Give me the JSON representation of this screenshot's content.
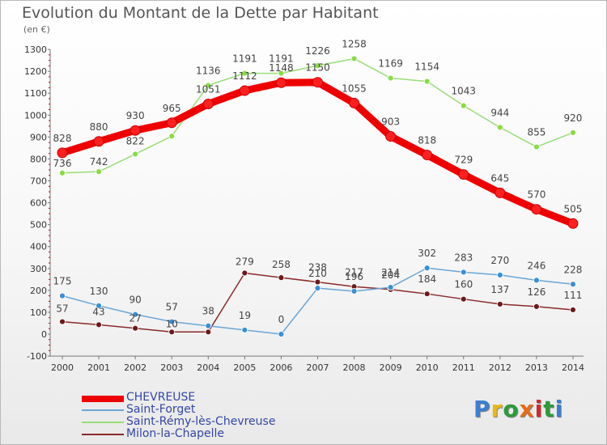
{
  "title": "Evolution du Montant de la Dette par Habitant",
  "unit": "(en €)",
  "chart_data": {
    "type": "line",
    "title": "Evolution du Montant de la Dette par Habitant",
    "subtitle": "(en €)",
    "x": [
      "2000",
      "2001",
      "2002",
      "2003",
      "2004",
      "2005",
      "2006",
      "2007",
      "2008",
      "2009",
      "2010",
      "2011",
      "2012",
      "2013",
      "2014"
    ],
    "ylim": [
      -100,
      1300
    ],
    "yticks": [
      -100,
      0,
      100,
      200,
      300,
      400,
      500,
      600,
      700,
      800,
      900,
      1000,
      1100,
      1200,
      1300
    ],
    "grid": false,
    "legend_position": "bottom-left",
    "series": [
      {
        "name": "CHEVREUSE",
        "color": "#ee0000",
        "marker": "#ff2020",
        "values": [
          828,
          880,
          930,
          965,
          1051,
          1112,
          1148,
          1150,
          1055,
          903,
          818,
          729,
          645,
          570,
          505
        ]
      },
      {
        "name": "Saint-Forget",
        "color": "#6aa6d6",
        "marker": "#3a8fd6",
        "values": [
          175,
          130,
          90,
          57,
          38,
          19,
          0,
          210,
          196,
          214,
          302,
          283,
          270,
          246,
          228
        ]
      },
      {
        "name": "Saint-Rémy-lès-Chevreuse",
        "color": "#99dd77",
        "marker": "#88dd44",
        "values": [
          736,
          742,
          822,
          904,
          1136,
          1191,
          1191,
          1226,
          1258,
          1169,
          1154,
          1043,
          944,
          855,
          920
        ]
      },
      {
        "name": "Milon-la-Chapelle",
        "color": "#8b2a2a",
        "marker": "#6b1a1a",
        "values": [
          57,
          43,
          27,
          10,
          10,
          279,
          258,
          238,
          217,
          204,
          184,
          160,
          137,
          126,
          111
        ]
      }
    ],
    "data_labels": {
      "CHEVREUSE": [
        "828",
        "880",
        "930",
        "965",
        "1051",
        "1112",
        "1148",
        "1150",
        "1055",
        "903",
        "818",
        "729",
        "645",
        "570",
        "505"
      ],
      "Saint-Forget": [
        "175",
        "130",
        "90",
        "57",
        "38",
        "19",
        "0",
        "210",
        "196",
        "214",
        "302",
        "283",
        "270",
        "246",
        "228"
      ],
      "Saint-Rémy-lès-Chevreuse": [
        "736",
        "742",
        "822",
        "",
        "1136",
        "1191",
        "1191",
        "1226",
        "1258",
        "1169",
        "1154",
        "1043",
        "944",
        "855",
        "920"
      ],
      "Milon-la-Chapelle": [
        "57",
        "43",
        "27",
        "10",
        "",
        "279",
        "258",
        "238",
        "217",
        "204",
        "184",
        "160",
        "137",
        "126",
        "111"
      ]
    }
  },
  "logo": {
    "text": "Proxiti",
    "colors": [
      "#3a7fd0",
      "#e8b81a",
      "#2e9a3a",
      "#e86a1a",
      "#d02a2a",
      "#2e9a3a",
      "#3a7fd0"
    ]
  }
}
